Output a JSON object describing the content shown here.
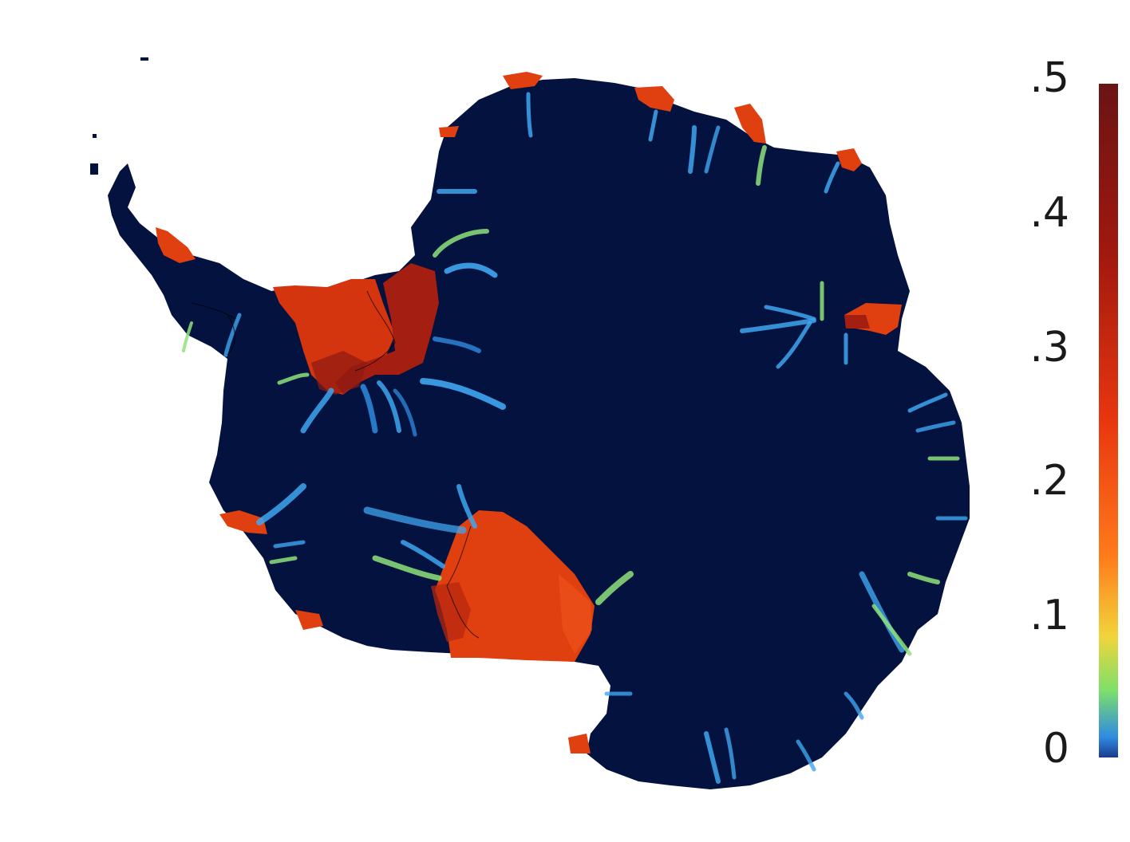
{
  "colorbar": {
    "ticks": [
      ".5",
      ".4",
      ".3",
      ".2",
      ".1",
      "0"
    ],
    "tick_values": [
      0.5,
      0.4,
      0.3,
      0.2,
      0.1,
      0
    ],
    "range": [
      0,
      0.5
    ],
    "colormap": "jet-like (blue → cyan → green → yellow → orange → red → dark red)",
    "colors": [
      "#1a3a8f",
      "#2f8be0",
      "#7ee06a",
      "#f2d43a",
      "#ff7a1a",
      "#e8360f",
      "#a0180e",
      "#6a1414"
    ]
  },
  "map": {
    "background_color": "#03123e",
    "ice_shelf_color": "#e0400f",
    "high_value_color": "#a41e12",
    "outline_color": "#000000"
  }
}
